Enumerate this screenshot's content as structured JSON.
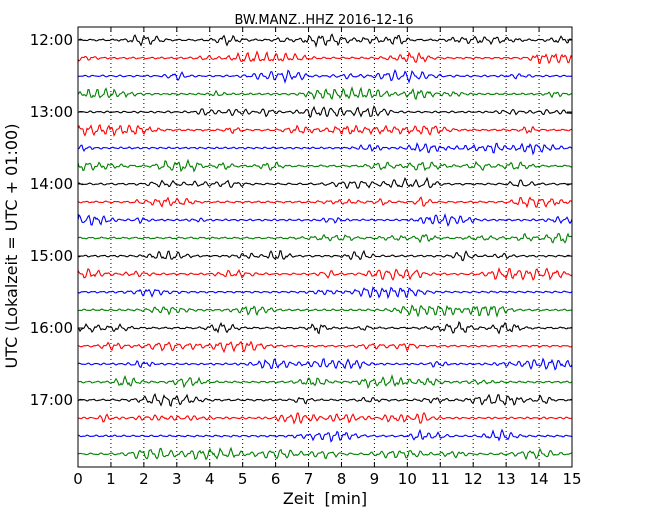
{
  "chart_data": {
    "type": "line",
    "title": "BW.MANZ..HHZ 2016-12-16",
    "xlabel": "Zeit  [min]",
    "ylabel": "UTC (Lokalzeit = UTC + 01:00)",
    "xlim": [
      0,
      15
    ],
    "x_ticks": [
      "0",
      "1",
      "2",
      "3",
      "4",
      "5",
      "6",
      "7",
      "8",
      "9",
      "10",
      "11",
      "12",
      "13",
      "14",
      "15"
    ],
    "y_tick_labels": [
      "12:00",
      "13:00",
      "14:00",
      "15:00",
      "16:00",
      "17:00"
    ],
    "row_interval_minutes": 15,
    "first_row": "12:00",
    "row_count": 24,
    "row_colors": [
      "#000000",
      "#ff0000",
      "#0000ff",
      "#008000"
    ],
    "grid_x": true,
    "grid_style": "dotted"
  }
}
